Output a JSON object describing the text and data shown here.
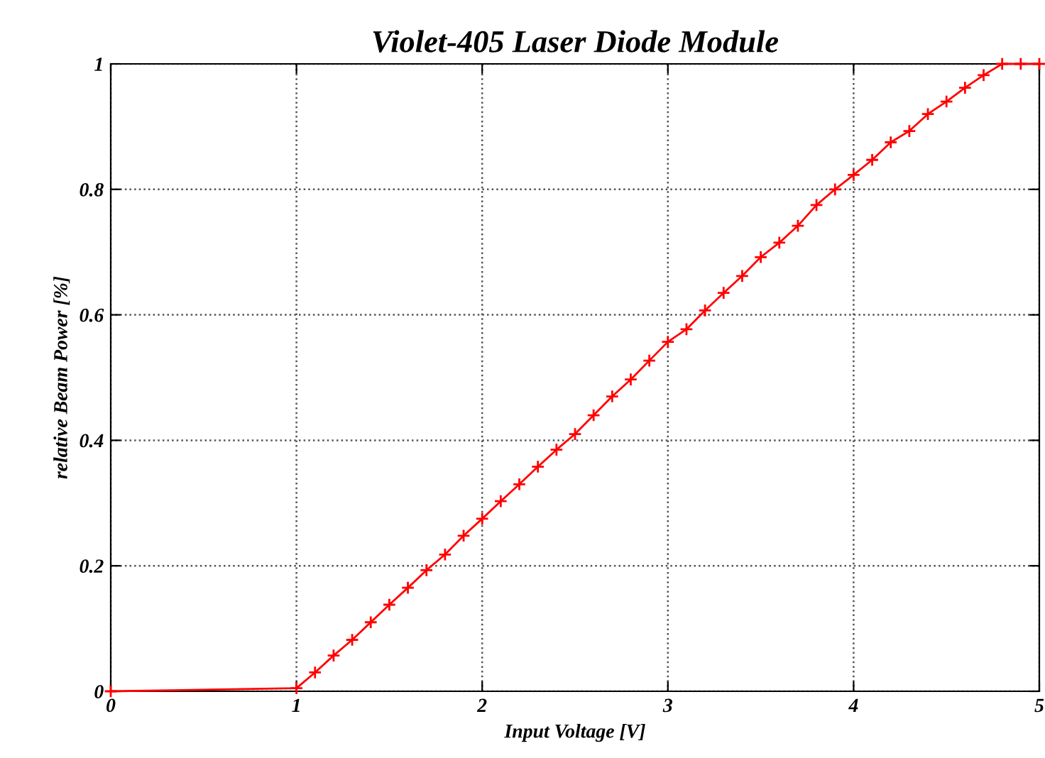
{
  "chart_data": {
    "type": "line",
    "title": "Violet-405 Laser Diode Module",
    "xlabel": "Input Voltage [V]",
    "ylabel": "relative Beam Power [%]",
    "x": [
      0,
      1,
      1.1,
      1.2,
      1.3,
      1.4,
      1.5,
      1.6,
      1.7,
      1.8,
      1.9,
      2.0,
      2.1,
      2.2,
      2.3,
      2.4,
      2.5,
      2.6,
      2.7,
      2.8,
      2.9,
      3.0,
      3.1,
      3.2,
      3.3,
      3.4,
      3.5,
      3.6,
      3.7,
      3.8,
      3.9,
      4.0,
      4.1,
      4.2,
      4.3,
      4.4,
      4.5,
      4.6,
      4.7,
      4.8,
      4.9,
      5.0
    ],
    "series": [
      {
        "color": "#ff0000",
        "values": [
          0,
          0.005,
          0.03,
          0.057,
          0.082,
          0.11,
          0.138,
          0.165,
          0.193,
          0.218,
          0.248,
          0.275,
          0.303,
          0.33,
          0.358,
          0.385,
          0.41,
          0.44,
          0.47,
          0.497,
          0.527,
          0.557,
          0.577,
          0.607,
          0.635,
          0.662,
          0.692,
          0.715,
          0.742,
          0.775,
          0.8,
          0.823,
          0.847,
          0.875,
          0.893,
          0.92,
          0.94,
          0.962,
          0.982,
          1,
          1,
          1
        ]
      }
    ],
    "xlim": [
      0,
      5
    ],
    "xticks": [
      0,
      1,
      2,
      3,
      4,
      5
    ],
    "ylim": [
      0,
      1
    ],
    "yticks": [
      0,
      0.2,
      0.4,
      0.6,
      0.8,
      1
    ],
    "grid": true,
    "marker": "cross",
    "line_style": "solid"
  }
}
